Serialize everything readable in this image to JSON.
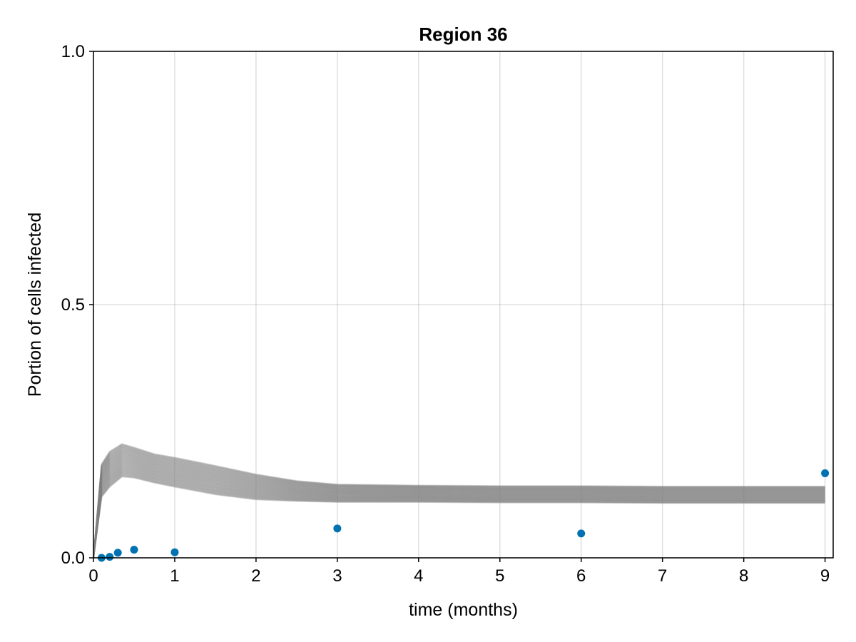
{
  "chart_data": {
    "type": "line",
    "title": "Region 36",
    "xlabel": "time (months)",
    "ylabel": "Portion of cells infected",
    "xlim": [
      0,
      9.1
    ],
    "ylim": [
      0,
      1
    ],
    "grid": true,
    "x_ticks": [
      0,
      1,
      2,
      3,
      4,
      5,
      6,
      7,
      8,
      9
    ],
    "y_ticks": [
      0.0,
      0.5,
      1.0
    ],
    "y_tick_labels": [
      "0.0",
      "0.5",
      "1.0"
    ],
    "colors": {
      "ensemble": "#808080",
      "observed": "#0072b2"
    },
    "series": [
      {
        "kind": "line-ensemble",
        "color": "#808080",
        "x": [
          0,
          0.1,
          0.2,
          0.35,
          0.5,
          0.75,
          1,
          1.5,
          2,
          2.5,
          3,
          4,
          5,
          6,
          7,
          8,
          9
        ],
        "upper": [
          0,
          0.185,
          0.21,
          0.225,
          0.218,
          0.205,
          0.198,
          0.182,
          0.165,
          0.152,
          0.145,
          0.143,
          0.142,
          0.142,
          0.141,
          0.141,
          0.141
        ],
        "lower": [
          0,
          0.12,
          0.14,
          0.16,
          0.158,
          0.148,
          0.14,
          0.125,
          0.115,
          0.112,
          0.11,
          0.11,
          0.109,
          0.109,
          0.108,
          0.108,
          0.108
        ]
      },
      {
        "kind": "scatter",
        "color": "#0072b2",
        "x": [
          0.1,
          0.2,
          0.3,
          0.5,
          1,
          3,
          6,
          9
        ],
        "y": [
          0.0,
          0.002,
          0.01,
          0.016,
          0.011,
          0.058,
          0.048,
          0.167
        ]
      }
    ]
  }
}
